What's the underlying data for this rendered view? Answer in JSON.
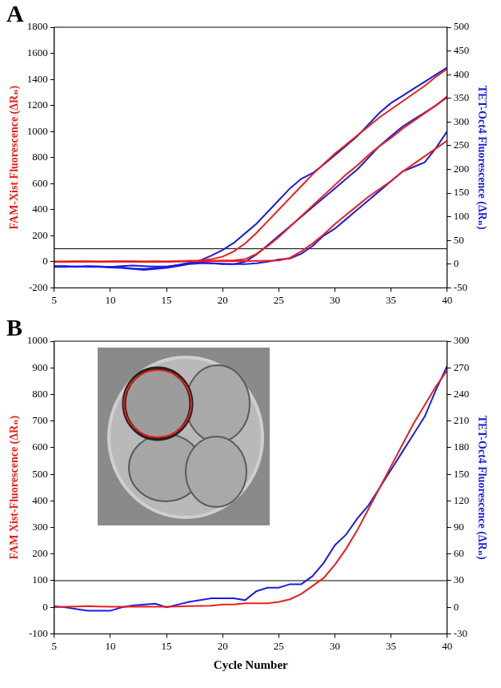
{
  "chart_data": [
    {
      "type": "line",
      "panel": "A",
      "y_label": "FAM-Xist Fluorescence (ΔRₙ)",
      "y2_label": "TET-Oct4 Fluorescence (ΔRₙ)",
      "x": [
        5,
        6,
        7,
        8,
        9,
        10,
        11,
        12,
        13,
        14,
        15,
        16,
        17,
        18,
        19,
        20,
        21,
        22,
        23,
        24,
        25,
        26,
        27,
        28,
        29,
        30,
        31,
        32,
        33,
        34,
        35,
        36,
        37,
        38,
        39,
        40
      ],
      "xlim": [
        5,
        40
      ],
      "xticks": [
        5,
        10,
        15,
        20,
        25,
        30,
        35,
        40
      ],
      "ylim": [
        -200,
        1800
      ],
      "yticks": [
        -200,
        0,
        200,
        400,
        600,
        800,
        1000,
        1200,
        1400,
        1600,
        1800
      ],
      "y2lim": [
        -50,
        500
      ],
      "y2ticks": [
        -50,
        0,
        50,
        100,
        150,
        200,
        250,
        300,
        350,
        400,
        450,
        500
      ],
      "threshold": 100,
      "grid": false,
      "series": [
        {
          "color": "#e8201c",
          "values": [
            0,
            2,
            4,
            3,
            2,
            3,
            4,
            3,
            2,
            3,
            2,
            5,
            8,
            10,
            20,
            40,
            80,
            140,
            220,
            310,
            400,
            490,
            580,
            670,
            750,
            830,
            900,
            970,
            1040,
            1110,
            1170,
            1230,
            1290,
            1350,
            1420,
            1480
          ]
        },
        {
          "color": "#e8201c",
          "values": [
            0,
            1,
            2,
            2,
            1,
            2,
            3,
            2,
            1,
            2,
            1,
            3,
            5,
            6,
            8,
            10,
            12,
            20,
            60,
            120,
            190,
            270,
            350,
            430,
            510,
            590,
            670,
            740,
            820,
            890,
            950,
            1020,
            1080,
            1140,
            1200,
            1270
          ]
        },
        {
          "color": "#e8201c",
          "values": [
            0,
            1,
            1,
            2,
            1,
            1,
            2,
            1,
            1,
            1,
            1,
            2,
            3,
            3,
            4,
            5,
            5,
            6,
            7,
            8,
            10,
            30,
            80,
            140,
            210,
            290,
            360,
            430,
            500,
            560,
            620,
            690,
            750,
            810,
            870,
            930
          ]
        },
        {
          "color": "#1c1ce0",
          "axis": "y2",
          "values": [
            -5,
            -5,
            -6,
            -5,
            -5,
            -6,
            -4,
            -3,
            -4,
            -5,
            -5,
            -2,
            2,
            8,
            18,
            30,
            45,
            65,
            85,
            110,
            135,
            160,
            180,
            192,
            210,
            230,
            250,
            270,
            295,
            320,
            340,
            355,
            370,
            385,
            400,
            415
          ]
        },
        {
          "color": "#1c1ce0",
          "axis": "y2",
          "values": [
            -4,
            -4,
            -5,
            -4,
            -5,
            -6,
            -7,
            -9,
            -10,
            -8,
            -6,
            -2,
            3,
            4,
            2,
            0,
            0,
            5,
            20,
            40,
            60,
            80,
            100,
            120,
            140,
            160,
            180,
            200,
            225,
            250,
            270,
            290,
            305,
            320,
            335,
            352
          ]
        },
        {
          "color": "#1c1ce0",
          "axis": "y2",
          "values": [
            -6,
            -6,
            -5,
            -6,
            -6,
            -7,
            -8,
            -10,
            -12,
            -10,
            -8,
            -4,
            0,
            2,
            2,
            1,
            0,
            0,
            2,
            5,
            10,
            12,
            22,
            38,
            60,
            75,
            95,
            115,
            135,
            155,
            175,
            195,
            205,
            215,
            245,
            280
          ]
        }
      ]
    },
    {
      "type": "line",
      "panel": "B",
      "y_label": "FAM Xist-Fluorescence (ΔRₙ)",
      "y2_label": "TET-Oct4 Fluorescence (ΔRₙ)",
      "x_label": "Cycle Number",
      "x": [
        5,
        6,
        7,
        8,
        9,
        10,
        11,
        12,
        13,
        14,
        15,
        16,
        17,
        18,
        19,
        20,
        21,
        22,
        23,
        24,
        25,
        26,
        27,
        28,
        29,
        30,
        31,
        32,
        33,
        34,
        35,
        36,
        37,
        38,
        39,
        40
      ],
      "xlim": [
        5,
        40
      ],
      "xticks": [
        5,
        10,
        15,
        20,
        25,
        30,
        35,
        40
      ],
      "ylim": [
        -100,
        1000
      ],
      "yticks": [
        -100,
        0,
        100,
        200,
        300,
        400,
        500,
        600,
        700,
        800,
        900,
        1000
      ],
      "y2lim": [
        -30,
        300
      ],
      "y2ticks": [
        -30,
        0,
        30,
        60,
        90,
        120,
        150,
        180,
        210,
        240,
        270,
        300
      ],
      "threshold": 100,
      "grid": false,
      "series": [
        {
          "color": "#e8201c",
          "values": [
            0,
            2,
            3,
            4,
            3,
            2,
            2,
            2,
            3,
            2,
            2,
            3,
            4,
            5,
            6,
            10,
            10,
            15,
            15,
            15,
            20,
            30,
            50,
            80,
            110,
            160,
            220,
            290,
            370,
            450,
            530,
            610,
            690,
            760,
            830,
            890
          ]
        },
        {
          "color": "#1c1ce0",
          "axis": "y2",
          "values": [
            1,
            0,
            -2,
            -4,
            -4,
            -4,
            0,
            2,
            3,
            4,
            0,
            3,
            6,
            8,
            10,
            10,
            10,
            8,
            18,
            22,
            22,
            26,
            26,
            35,
            50,
            70,
            82,
            100,
            115,
            135,
            155,
            175,
            195,
            215,
            245,
            272
          ]
        }
      ]
    }
  ]
}
